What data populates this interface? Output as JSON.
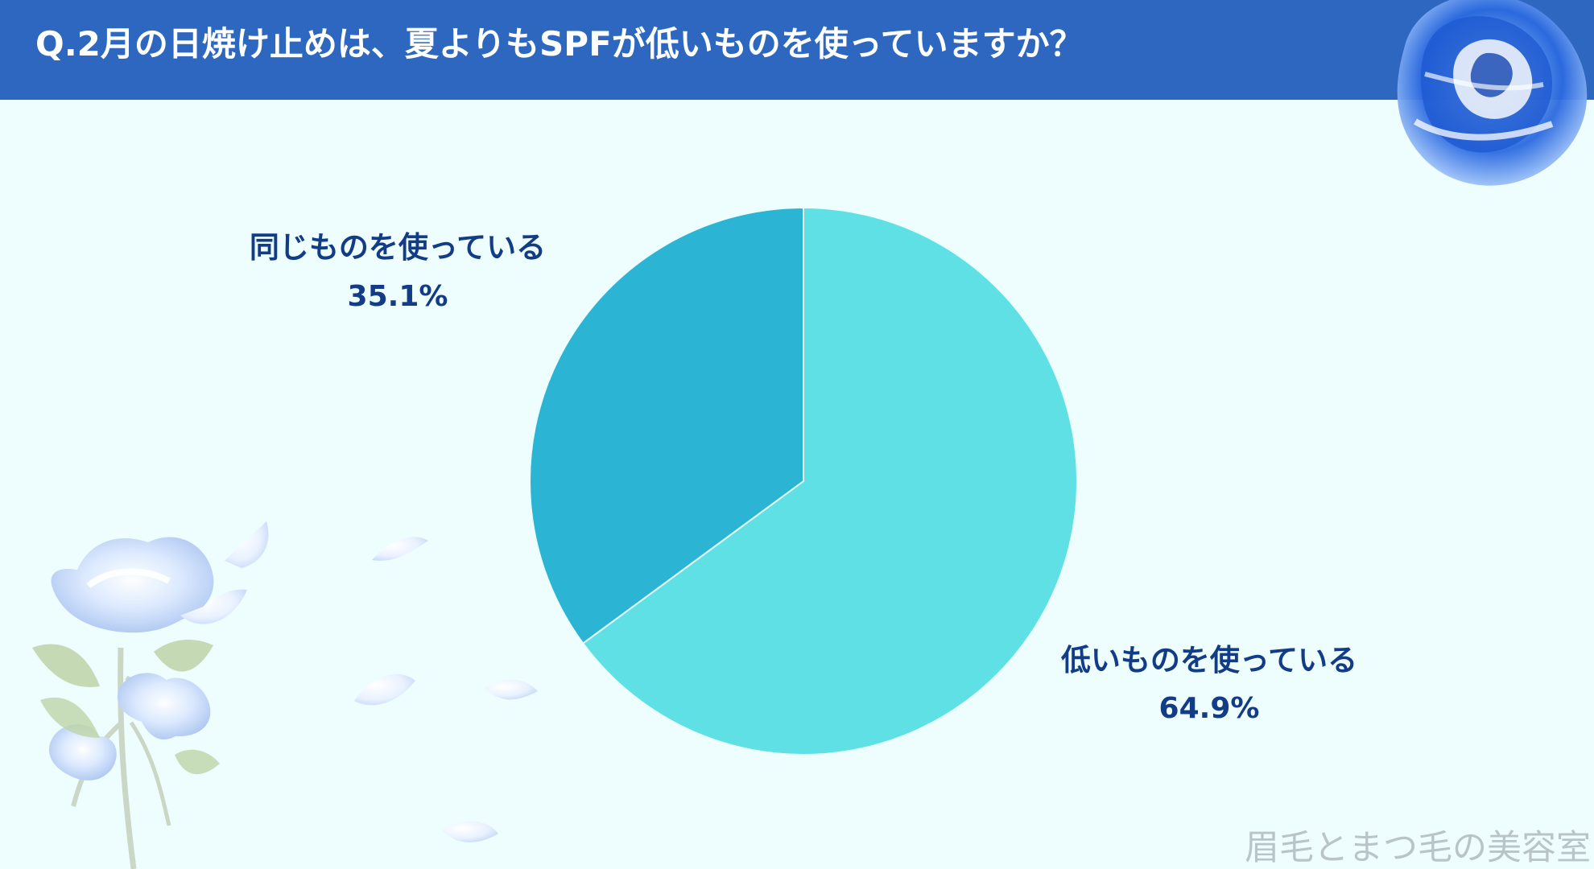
{
  "header": {
    "title": "Q.2月の日焼け止めは、夏よりもSPFが低いものを使っていますか？"
  },
  "decorations": {
    "top_right": "blue-rose-icon",
    "left_bottom": "blue-rose-bouquet-icon",
    "petals": "petal-icon"
  },
  "chart_data": {
    "type": "pie",
    "title": "Q.2月の日焼け止めは、夏よりもSPFが低いものを使っていますか？",
    "categories": [
      "低いものを使っている",
      "同じものを使っている"
    ],
    "values": [
      64.9,
      35.1
    ],
    "labels": [
      "64.9%",
      "35.1%"
    ],
    "colors": [
      "#5fe0e5",
      "#2bb4d3"
    ],
    "label_color": "#123d86",
    "legend": "none"
  },
  "footer": {
    "watermark": "眉毛とまつ毛の美容室"
  },
  "colors": {
    "header_bg": "#2d67bf",
    "page_bg": "#eefefe",
    "label": "#123d86"
  }
}
